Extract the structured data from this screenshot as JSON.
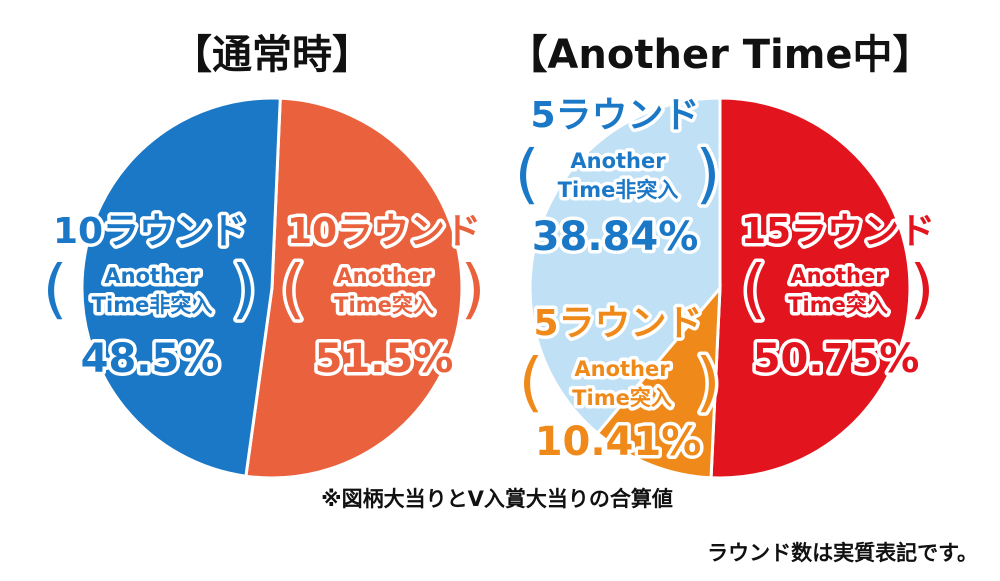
{
  "chart_data": [
    {
      "type": "pie",
      "title": "【通常時】",
      "slices": [
        {
          "round": "10ラウンド",
          "paren_open": "(",
          "paren_close": ")",
          "line1": "Another",
          "line2": "Time非突入",
          "value": 48.5,
          "value_label": "48.5%",
          "color": "#1a78c6",
          "label_color": "#1a78c6"
        },
        {
          "round": "10ラウンド",
          "paren_open": "(",
          "paren_close": ")",
          "line1": "Another",
          "line2": "Time突入",
          "value": 51.5,
          "value_label": "51.5%",
          "color": "#e9623d",
          "label_color": "#e9623d"
        }
      ]
    },
    {
      "type": "pie",
      "title": "【Another Time中】",
      "slices": [
        {
          "round": "15ラウンド",
          "paren_open": "(",
          "paren_close": ")",
          "line1": "Another",
          "line2": "Time突入",
          "value": 50.75,
          "value_label": "50.75%",
          "color": "#e2141e",
          "label_color": "#e2141e"
        },
        {
          "round": "5ラウンド",
          "paren_open": "(",
          "paren_close": ")",
          "line1": "Another",
          "line2": "Time突入",
          "value": 10.41,
          "value_label": "10.41%",
          "color": "#ef8a1a",
          "label_color": "#ef8a1a"
        },
        {
          "round": "5ラウンド",
          "paren_open": "(",
          "paren_close": ")",
          "line1": "Another",
          "line2": "Time非突入",
          "value": 38.84,
          "value_label": "38.84%",
          "color": "#bfe0f5",
          "label_color": "#1a78c6"
        }
      ]
    }
  ],
  "note": "※図柄大当りとV入賞大当りの合算値",
  "footnote": "ラウンド数は実質表記です。"
}
